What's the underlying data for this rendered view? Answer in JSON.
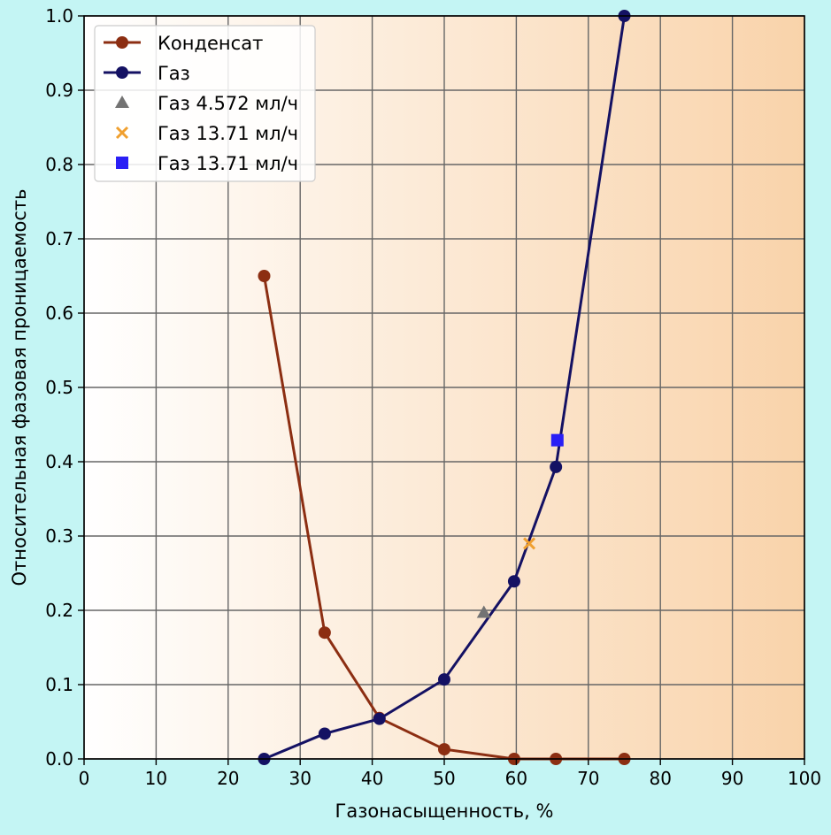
{
  "chart_data": {
    "type": "line",
    "xlabel": "Газонасыщенность, %",
    "ylabel": "Относительная фазовая проницаемость",
    "xlim": [
      0,
      100
    ],
    "ylim": [
      0,
      1.0
    ],
    "x_ticks": [
      0,
      10,
      20,
      30,
      40,
      50,
      60,
      70,
      80,
      90,
      100
    ],
    "y_ticks": [
      0.0,
      0.1,
      0.2,
      0.3,
      0.4,
      0.5,
      0.6,
      0.7,
      0.8,
      0.9,
      1.0
    ],
    "x_tick_labels": [
      "0",
      "10",
      "20",
      "30",
      "40",
      "50",
      "60",
      "70",
      "80",
      "90",
      "100"
    ],
    "y_tick_labels": [
      "0.0",
      "0.1",
      "0.2",
      "0.3",
      "0.4",
      "0.5",
      "0.6",
      "0.7",
      "0.8",
      "0.9",
      "1.0"
    ],
    "grid": true,
    "legend_position": "top-left",
    "background_gradient": [
      "#ffffff",
      "#f9d3aa"
    ],
    "series": [
      {
        "name": "Конденсат",
        "style": "line-marker",
        "marker": "circle",
        "color": "#8c2e12",
        "x": [
          25,
          33.4,
          41,
          50,
          59.7,
          65.5,
          75
        ],
        "y": [
          0.65,
          0.17,
          0.055,
          0.013,
          0.0,
          0.0,
          0.0
        ]
      },
      {
        "name": "Газ",
        "style": "line-marker",
        "marker": "circle",
        "color": "#141163",
        "x": [
          25,
          33.4,
          41,
          50,
          59.7,
          65.5,
          75
        ],
        "y": [
          0.0,
          0.034,
          0.054,
          0.107,
          0.239,
          0.393,
          1.0
        ]
      },
      {
        "name": "Газ 4.572 мл/ч",
        "style": "marker",
        "marker": "triangle",
        "color": "#737373",
        "x": [
          55.5
        ],
        "y": [
          0.197
        ]
      },
      {
        "name": "Газ 13.71 мл/ч",
        "style": "marker",
        "marker": "x",
        "color": "#f0a030",
        "x": [
          61.8
        ],
        "y": [
          0.29
        ]
      },
      {
        "name": "Газ 13.71 мл/ч",
        "style": "marker",
        "marker": "square",
        "color": "#2a1ff5",
        "x": [
          65.7
        ],
        "y": [
          0.429
        ]
      }
    ]
  }
}
